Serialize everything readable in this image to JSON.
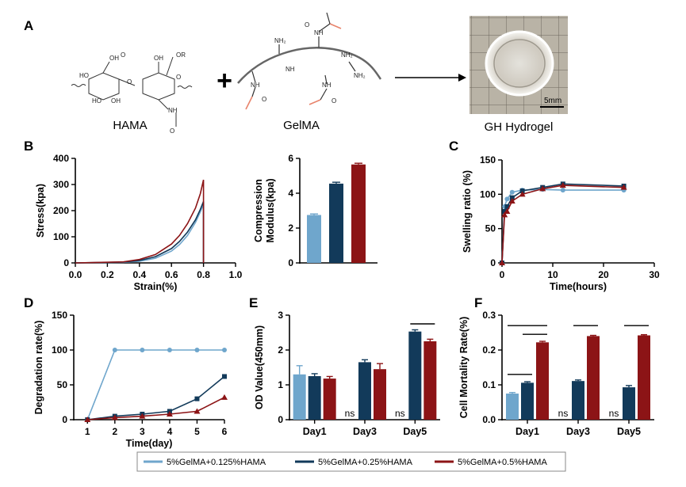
{
  "panel_letters": {
    "A": "A",
    "B": "B",
    "C": "C",
    "D": "D",
    "E": "E",
    "F": "F"
  },
  "panel_a": {
    "hama_label": "HAMA",
    "gelma_label": "GelMA",
    "hydrogel_label": "GH Hydrogel",
    "plus_sign": "+",
    "scale_bar_label": "5mm",
    "chem_labels": {
      "oh1": "OH",
      "o1": "O",
      "oh2": "OH",
      "or": "OR",
      "ho1": "HO",
      "ho2": "HO",
      "o2": "O",
      "oh3": "OH",
      "o3": "O",
      "nh1": "NH",
      "o4": "O",
      "nh2_1": "NH₂",
      "nh_top": "NH",
      "o_top": "O",
      "nh2_2": "NH₂",
      "nh2_3": "NH₂",
      "nh_mid": "NH",
      "o_mid": "O",
      "nh_low": "NH",
      "o_low": "O",
      "nh_bot": "NH"
    }
  },
  "legend": {
    "items": [
      {
        "label": "5%GelMA+0.125%HAMA",
        "color": "#6fa6cc"
      },
      {
        "label": "5%GelMA+0.25%HAMA",
        "color": "#123a5a"
      },
      {
        "label": "5%GelMA+0.5%HAMA",
        "color": "#8c1416"
      }
    ]
  },
  "chart_data": [
    {
      "id": "B1",
      "type": "line",
      "xlabel": "Strain(%)",
      "ylabel": "Stress(kpa)",
      "xlim": [
        0,
        1.0
      ],
      "ylim": [
        0,
        400
      ],
      "xticks": [
        "0.0",
        "0.2",
        "0.4",
        "0.6",
        "0.8",
        "1.0"
      ],
      "yticks": [
        "0",
        "100",
        "200",
        "300",
        "400"
      ],
      "series": [
        {
          "color": "#6fa6cc",
          "x": [
            0,
            0.3,
            0.4,
            0.5,
            0.6,
            0.65,
            0.7,
            0.75,
            0.78,
            0.8,
            0.8
          ],
          "y": [
            0,
            2,
            6,
            18,
            45,
            70,
            105,
            155,
            195,
            225,
            0
          ]
        },
        {
          "color": "#123a5a",
          "x": [
            0,
            0.3,
            0.4,
            0.5,
            0.6,
            0.65,
            0.7,
            0.75,
            0.78,
            0.8,
            0.8
          ],
          "y": [
            0,
            3,
            9,
            24,
            55,
            82,
            118,
            165,
            205,
            235,
            0
          ]
        },
        {
          "color": "#8c1416",
          "x": [
            0,
            0.3,
            0.4,
            0.5,
            0.6,
            0.65,
            0.7,
            0.75,
            0.78,
            0.8,
            0.8
          ],
          "y": [
            0,
            4,
            13,
            32,
            72,
            105,
            150,
            210,
            265,
            318,
            0
          ]
        }
      ]
    },
    {
      "id": "B2",
      "type": "bar",
      "ylabel": "Compression Modulus(kpa)",
      "ylim": [
        0,
        6
      ],
      "yticks": [
        "0",
        "2",
        "4",
        "6"
      ],
      "values": [
        2.75,
        4.55,
        5.65
      ],
      "errors": [
        0.06,
        0.08,
        0.07
      ],
      "colors": [
        "#6fa6cc",
        "#123a5a",
        "#8c1416"
      ]
    },
    {
      "id": "C",
      "type": "line",
      "xlabel": "Time(hours)",
      "ylabel": "Swelling ratio (%)",
      "xlim": [
        0,
        30
      ],
      "ylim": [
        0,
        150
      ],
      "xticks": [
        "0",
        "10",
        "20",
        "30"
      ],
      "yticks": [
        "0",
        "50",
        "100",
        "150"
      ],
      "series": [
        {
          "color": "#6fa6cc",
          "marker": "circle",
          "x": [
            0,
            0.5,
            1,
            2,
            4,
            8,
            12,
            24
          ],
          "y": [
            0,
            82,
            93,
            103,
            106,
            107,
            106,
            106
          ]
        },
        {
          "color": "#123a5a",
          "marker": "square",
          "x": [
            0,
            0.5,
            1,
            2,
            4,
            8,
            12,
            24
          ],
          "y": [
            0,
            75,
            82,
            95,
            105,
            110,
            115,
            112
          ]
        },
        {
          "color": "#8c1416",
          "marker": "triangle",
          "x": [
            0,
            0.5,
            1,
            2,
            4,
            8,
            12,
            24
          ],
          "y": [
            0,
            70,
            75,
            90,
            100,
            108,
            113,
            110
          ]
        }
      ]
    },
    {
      "id": "D",
      "type": "line",
      "xlabel": "Time(day)",
      "ylabel": "Degradation rate(%)",
      "xlim": [
        0.5,
        6
      ],
      "ylim": [
        0,
        150
      ],
      "xticks": [
        "1",
        "2",
        "3",
        "4",
        "5",
        "6"
      ],
      "yticks": [
        "0",
        "50",
        "100",
        "150"
      ],
      "series": [
        {
          "color": "#6fa6cc",
          "marker": "circle",
          "x": [
            1,
            2,
            3,
            4,
            5,
            6
          ],
          "y": [
            0,
            100,
            100,
            100,
            100,
            100
          ]
        },
        {
          "color": "#123a5a",
          "marker": "square",
          "x": [
            1,
            2,
            3,
            4,
            5,
            6
          ],
          "y": [
            0,
            5,
            8,
            12,
            30,
            62
          ]
        },
        {
          "color": "#8c1416",
          "marker": "triangle",
          "x": [
            1,
            2,
            3,
            4,
            5,
            6
          ],
          "y": [
            0,
            3,
            5,
            8,
            12,
            32
          ]
        }
      ]
    },
    {
      "id": "E",
      "type": "bar",
      "ylabel": "OD Value(450mm)",
      "ylim": [
        0,
        3
      ],
      "yticks": [
        "0",
        "1",
        "2",
        "3"
      ],
      "categories": [
        "Day1",
        "Day3",
        "Day5"
      ],
      "series": [
        {
          "color": "#6fa6cc",
          "values": [
            1.3,
            0,
            0
          ],
          "errors": [
            0.25,
            0,
            0
          ]
        },
        {
          "color": "#123a5a",
          "values": [
            1.25,
            1.65,
            2.53
          ],
          "errors": [
            0.07,
            0.07,
            0.05
          ]
        },
        {
          "color": "#8c1416",
          "values": [
            1.18,
            1.45,
            2.25
          ],
          "errors": [
            0.06,
            0.16,
            0.06
          ]
        }
      ],
      "annotations": [
        {
          "text": "ns",
          "category": 1
        },
        {
          "text": "ns",
          "category": 2
        }
      ],
      "sig_bars": [
        {
          "category": 2,
          "from": 1,
          "to": 2,
          "y": 2.75
        }
      ]
    },
    {
      "id": "F",
      "type": "bar",
      "ylabel": "Cell Mortality Rate(%)",
      "ylim": [
        0,
        0.3
      ],
      "yticks": [
        "0.0",
        "0.1",
        "0.2",
        "0.3"
      ],
      "categories": [
        "Day1",
        "Day3",
        "Day5"
      ],
      "series": [
        {
          "color": "#6fa6cc",
          "values": [
            0.075,
            0,
            0
          ],
          "errors": [
            0.003,
            0,
            0
          ]
        },
        {
          "color": "#123a5a",
          "values": [
            0.106,
            0.111,
            0.093
          ],
          "errors": [
            0.003,
            0.003,
            0.005
          ]
        },
        {
          "color": "#8c1416",
          "values": [
            0.222,
            0.24,
            0.242
          ],
          "errors": [
            0.003,
            0.002,
            0.002
          ]
        }
      ],
      "annotations": [
        {
          "text": "ns",
          "category": 1
        },
        {
          "text": "ns",
          "category": 2
        }
      ],
      "sig_bars": [
        {
          "category": 0,
          "from": 0,
          "to": 1,
          "y": 0.13
        },
        {
          "category": 0,
          "from": 1,
          "to": 2,
          "y": 0.245
        },
        {
          "category": 0,
          "from": 0,
          "to": 2,
          "y": 0.27
        },
        {
          "category": 1,
          "from": 1,
          "to": 2,
          "y": 0.27
        },
        {
          "category": 2,
          "from": 1,
          "to": 2,
          "y": 0.27
        }
      ]
    }
  ]
}
